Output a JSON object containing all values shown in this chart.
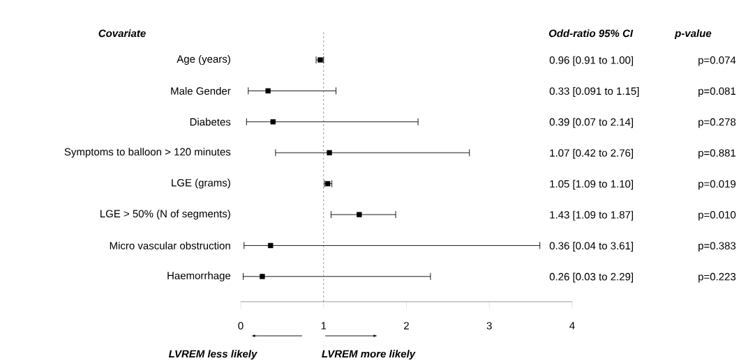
{
  "chart_data": {
    "type": "scatter",
    "orientation": "horizontal",
    "categories": [
      "Age (years)",
      "Male Gender",
      "Diabetes",
      "Symptoms to balloon > 120 minutes",
      "LGE (grams)",
      "LGE > 50% (N of segments)",
      "Micro vascular obstruction",
      "Haemorrhage"
    ],
    "values": [
      0.96,
      0.33,
      0.39,
      1.07,
      1.05,
      1.43,
      0.36,
      0.26
    ],
    "errors": [
      [
        0.91,
        1.0
      ],
      [
        0.091,
        1.15
      ],
      [
        0.07,
        2.14
      ],
      [
        0.42,
        2.76
      ],
      [
        1.01,
        1.1
      ],
      [
        1.09,
        1.87
      ],
      [
        0.04,
        3.61
      ],
      [
        0.03,
        2.29
      ]
    ],
    "color": "#000000",
    "marker": "square",
    "xlim": [
      0,
      4
    ],
    "xticks": [
      0,
      1,
      2,
      3,
      4
    ],
    "grid": false,
    "ref_lines": [
      {
        "axis": "x",
        "value": 1,
        "line_style": "dashed",
        "color": "#000000"
      }
    ],
    "annotations": [
      "Covariate",
      "Odd-ratio 95% CI",
      "p-value",
      "0.96 [0.91 to 1.00]",
      "0.33 [0.091 to 1.15]",
      "0.39 [0.07  to 2.14]",
      "1.07 [0.42 to 2.76]",
      "1.05 [1.09 to 1.10]",
      "1.43 [1.09 to 1.87]",
      "0.36 [0.04 to 3.61]",
      "0.26 [0.03 to 2.29]",
      "p=0.074",
      "p=0.081",
      "p=0.278",
      "p=0.881",
      "p=0.019",
      "p=0.010",
      "p=0.383",
      "p=0.223",
      "LVREM less likely",
      "LVREM more likely"
    ]
  }
}
